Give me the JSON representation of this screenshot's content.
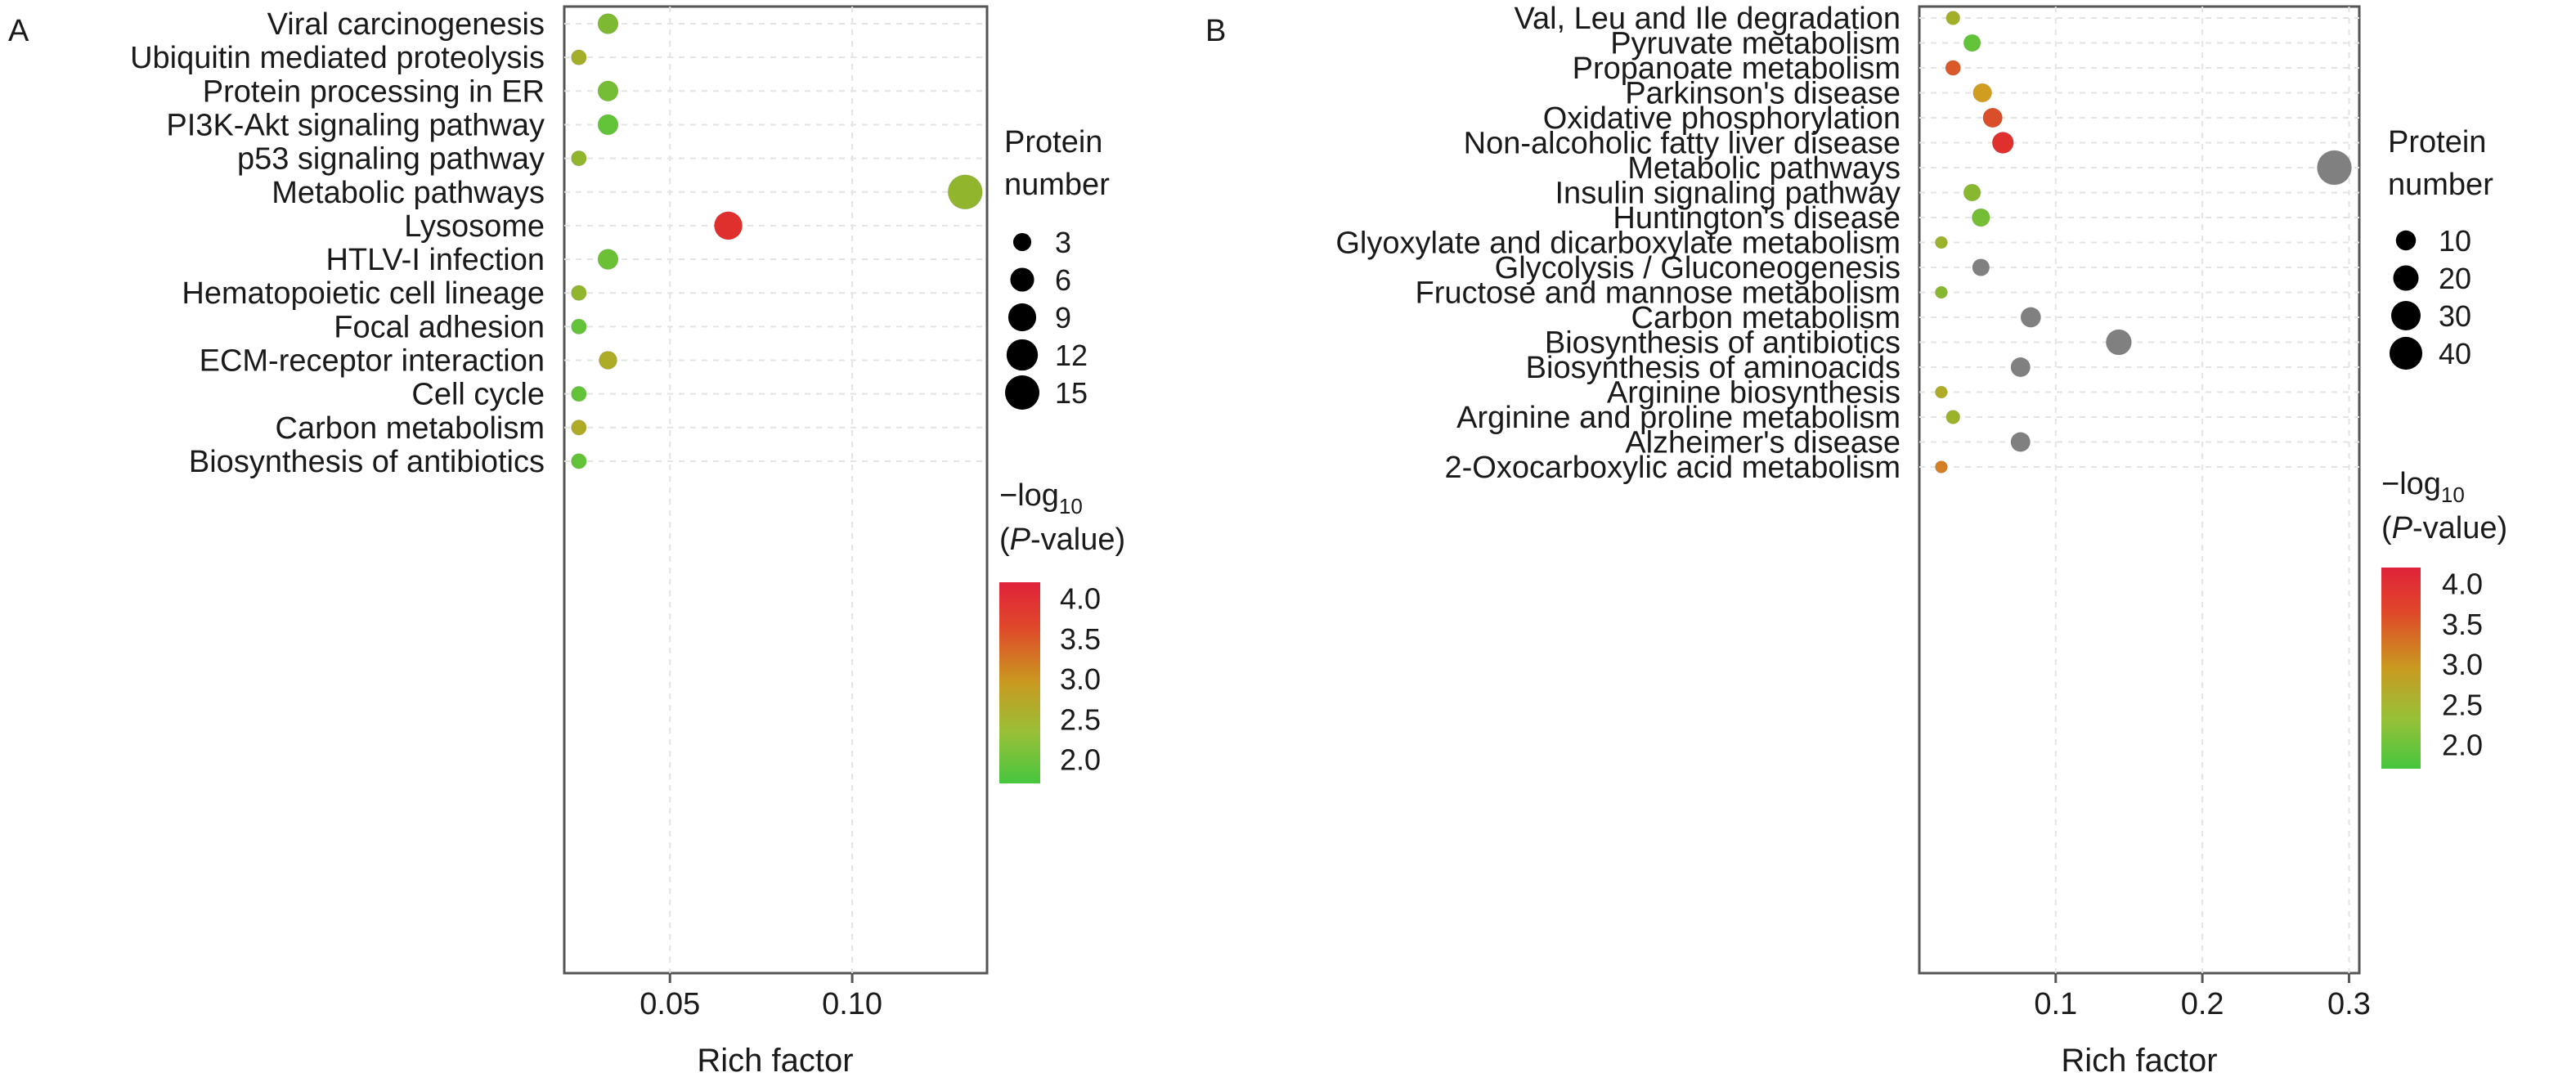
{
  "legend_titles": {
    "size_line1": "Protein",
    "size_line2": "number",
    "color_prefix": "−log",
    "color_sub": "10",
    "color_line2_open": "(",
    "color_line2_italic": "P",
    "color_line2_rest": "-value)"
  },
  "colors": {
    "low": "#58c63a",
    "mid": "#cfa21f",
    "high": "#e1262f",
    "not_significant": "#808080"
  },
  "chart_data": [
    {
      "panel": "A",
      "type": "scatter",
      "xlabel": "Rich factor",
      "ylabel": "",
      "xlim": [
        0.021,
        0.137
      ],
      "xticks": [
        0.05,
        0.1
      ],
      "xtick_labels": [
        "0.05",
        "0.10"
      ],
      "grid": true,
      "legend_position": "right",
      "size_legend": {
        "values": [
          3,
          6,
          9,
          12,
          15
        ],
        "labels": [
          "3",
          "6",
          "9",
          "12",
          "15"
        ]
      },
      "color_legend": {
        "range": [
          1.7,
          4.2
        ],
        "ticks": [
          "4.0",
          "3.5",
          "3.0",
          "2.5",
          "2.0"
        ]
      },
      "categories": [
        "Viral carcinogenesis",
        "Ubiquitin mediated proteolysis",
        "Protein processing in ER",
        "PI3K-Akt signaling pathway",
        "p53 signaling pathway",
        "Metabolic pathways",
        "Lysosome",
        "HTLV-I infection",
        "Hematopoietic cell lineage",
        "Focal adhesion",
        "ECM-receptor interaction",
        "Cell cycle",
        "Carbon metabolism",
        "Biosynthesis of antibiotics"
      ],
      "points": [
        {
          "category": "Viral carcinogenesis",
          "rich_factor": 0.033,
          "protein_number": 4,
          "neg_log10_p": 2.1
        },
        {
          "category": "Ubiquitin mediated proteolysis",
          "rich_factor": 0.025,
          "protein_number": 2,
          "neg_log10_p": 2.5
        },
        {
          "category": "Protein processing in ER",
          "rich_factor": 0.033,
          "protein_number": 4,
          "neg_log10_p": 2.0
        },
        {
          "category": "PI3K-Akt signaling pathway",
          "rich_factor": 0.033,
          "protein_number": 4,
          "neg_log10_p": 1.8
        },
        {
          "category": "p53 signaling pathway",
          "rich_factor": 0.025,
          "protein_number": 2,
          "neg_log10_p": 2.3
        },
        {
          "category": "Metabolic pathways",
          "rich_factor": 0.131,
          "protein_number": 15,
          "neg_log10_p": 2.3
        },
        {
          "category": "Lysosome",
          "rich_factor": 0.066,
          "protein_number": 9,
          "neg_log10_p": 4.1
        },
        {
          "category": "HTLV-I infection",
          "rich_factor": 0.033,
          "protein_number": 4,
          "neg_log10_p": 1.9
        },
        {
          "category": "Hematopoietic cell lineage",
          "rich_factor": 0.025,
          "protein_number": 2,
          "neg_log10_p": 2.3
        },
        {
          "category": "Focal adhesion",
          "rich_factor": 0.025,
          "protein_number": 2,
          "neg_log10_p": 1.8
        },
        {
          "category": "ECM-receptor interaction",
          "rich_factor": 0.033,
          "protein_number": 3,
          "neg_log10_p": 2.6
        },
        {
          "category": "Cell cycle",
          "rich_factor": 0.025,
          "protein_number": 2,
          "neg_log10_p": 1.8
        },
        {
          "category": "Carbon metabolism",
          "rich_factor": 0.025,
          "protein_number": 2,
          "neg_log10_p": 2.6
        },
        {
          "category": "Biosynthesis of antibiotics",
          "rich_factor": 0.025,
          "protein_number": 2,
          "neg_log10_p": 1.8
        }
      ]
    },
    {
      "panel": "B",
      "type": "scatter",
      "xlabel": "Rich factor",
      "ylabel": "",
      "xlim": [
        0.007,
        0.307
      ],
      "xticks": [
        0.1,
        0.2,
        0.3
      ],
      "xtick_labels": [
        "0.1",
        "0.2",
        "0.3"
      ],
      "grid": true,
      "legend_position": "right",
      "size_legend": {
        "values": [
          10,
          20,
          30,
          40
        ],
        "labels": [
          "10",
          "20",
          "30",
          "40"
        ]
      },
      "color_legend": {
        "range": [
          1.7,
          4.2
        ],
        "ticks": [
          "4.0",
          "3.5",
          "3.0",
          "2.5",
          "2.0"
        ]
      },
      "categories": [
        "Val, Leu and Ile degradation",
        "Pyruvate metabolism",
        "Propanoate metabolism",
        "Parkinson's disease",
        "Oxidative phosphorylation",
        "Non-alcoholic fatty liver disease",
        "Metabolic pathways",
        "Insulin signaling pathway",
        "Huntington's disease",
        "Glyoxylate and dicarboxylate metabolism",
        "Glycolysis / Gluconeogenesis",
        "Fructose and mannose metabolism",
        "Carbon metabolism",
        "Biosynthesis of antibiotics",
        "Biosynthesis of aminoacids",
        "Arginine biosynthesis",
        "Arginine and proline metabolism",
        "Alzheimer's disease",
        "2-Oxocarboxylic acid metabolism"
      ],
      "points": [
        {
          "category": "Val, Leu and Ile degradation",
          "rich_factor": 0.03,
          "protein_number": 3,
          "neg_log10_p": 2.5
        },
        {
          "category": "Pyruvate metabolism",
          "rich_factor": 0.043,
          "protein_number": 6,
          "neg_log10_p": 1.8,
          "not_significant": false
        },
        {
          "category": "Propanoate metabolism",
          "rich_factor": 0.03,
          "protein_number": 4,
          "neg_log10_p": 3.7
        },
        {
          "category": "Parkinson's disease",
          "rich_factor": 0.05,
          "protein_number": 8,
          "neg_log10_p": 3.0
        },
        {
          "category": "Oxidative phosphorylation",
          "rich_factor": 0.057,
          "protein_number": 9,
          "neg_log10_p": 3.8
        },
        {
          "category": "Non-alcoholic fatty liver disease",
          "rich_factor": 0.064,
          "protein_number": 12,
          "neg_log10_p": 4.1
        },
        {
          "category": "Metabolic pathways",
          "rich_factor": 0.29,
          "protein_number": 45,
          "neg_log10_p": null,
          "not_significant": true
        },
        {
          "category": "Insulin signaling pathway",
          "rich_factor": 0.043,
          "protein_number": 6,
          "neg_log10_p": 2.2
        },
        {
          "category": "Huntington's disease",
          "rich_factor": 0.049,
          "protein_number": 7,
          "neg_log10_p": 2.0
        },
        {
          "category": "Glyoxylate and dicarboxylate metabolism",
          "rich_factor": 0.022,
          "protein_number": 2,
          "neg_log10_p": 2.4
        },
        {
          "category": "Glycolysis / Gluconeogenesis",
          "rich_factor": 0.049,
          "protein_number": 6,
          "neg_log10_p": null,
          "not_significant": true
        },
        {
          "category": "Fructose and mannose metabolism",
          "rich_factor": 0.022,
          "protein_number": 2,
          "neg_log10_p": 2.2
        },
        {
          "category": "Carbon metabolism",
          "rich_factor": 0.083,
          "protein_number": 10,
          "neg_log10_p": null,
          "not_significant": true
        },
        {
          "category": "Biosynthesis of antibiotics",
          "rich_factor": 0.143,
          "protein_number": 20,
          "neg_log10_p": null,
          "not_significant": true
        },
        {
          "category": "Biosynthesis of aminoacids",
          "rich_factor": 0.076,
          "protein_number": 9,
          "neg_log10_p": null,
          "not_significant": true
        },
        {
          "category": "Arginine biosynthesis",
          "rich_factor": 0.022,
          "protein_number": 2,
          "neg_log10_p": 2.6
        },
        {
          "category": "Arginine and proline metabolism",
          "rich_factor": 0.03,
          "protein_number": 3,
          "neg_log10_p": 2.4
        },
        {
          "category": "Alzheimer's disease",
          "rich_factor": 0.076,
          "protein_number": 9,
          "neg_log10_p": null,
          "not_significant": true
        },
        {
          "category": "2-Oxocarboxylic acid metabolism",
          "rich_factor": 0.022,
          "protein_number": 2,
          "neg_log10_p": 3.3
        }
      ]
    }
  ]
}
